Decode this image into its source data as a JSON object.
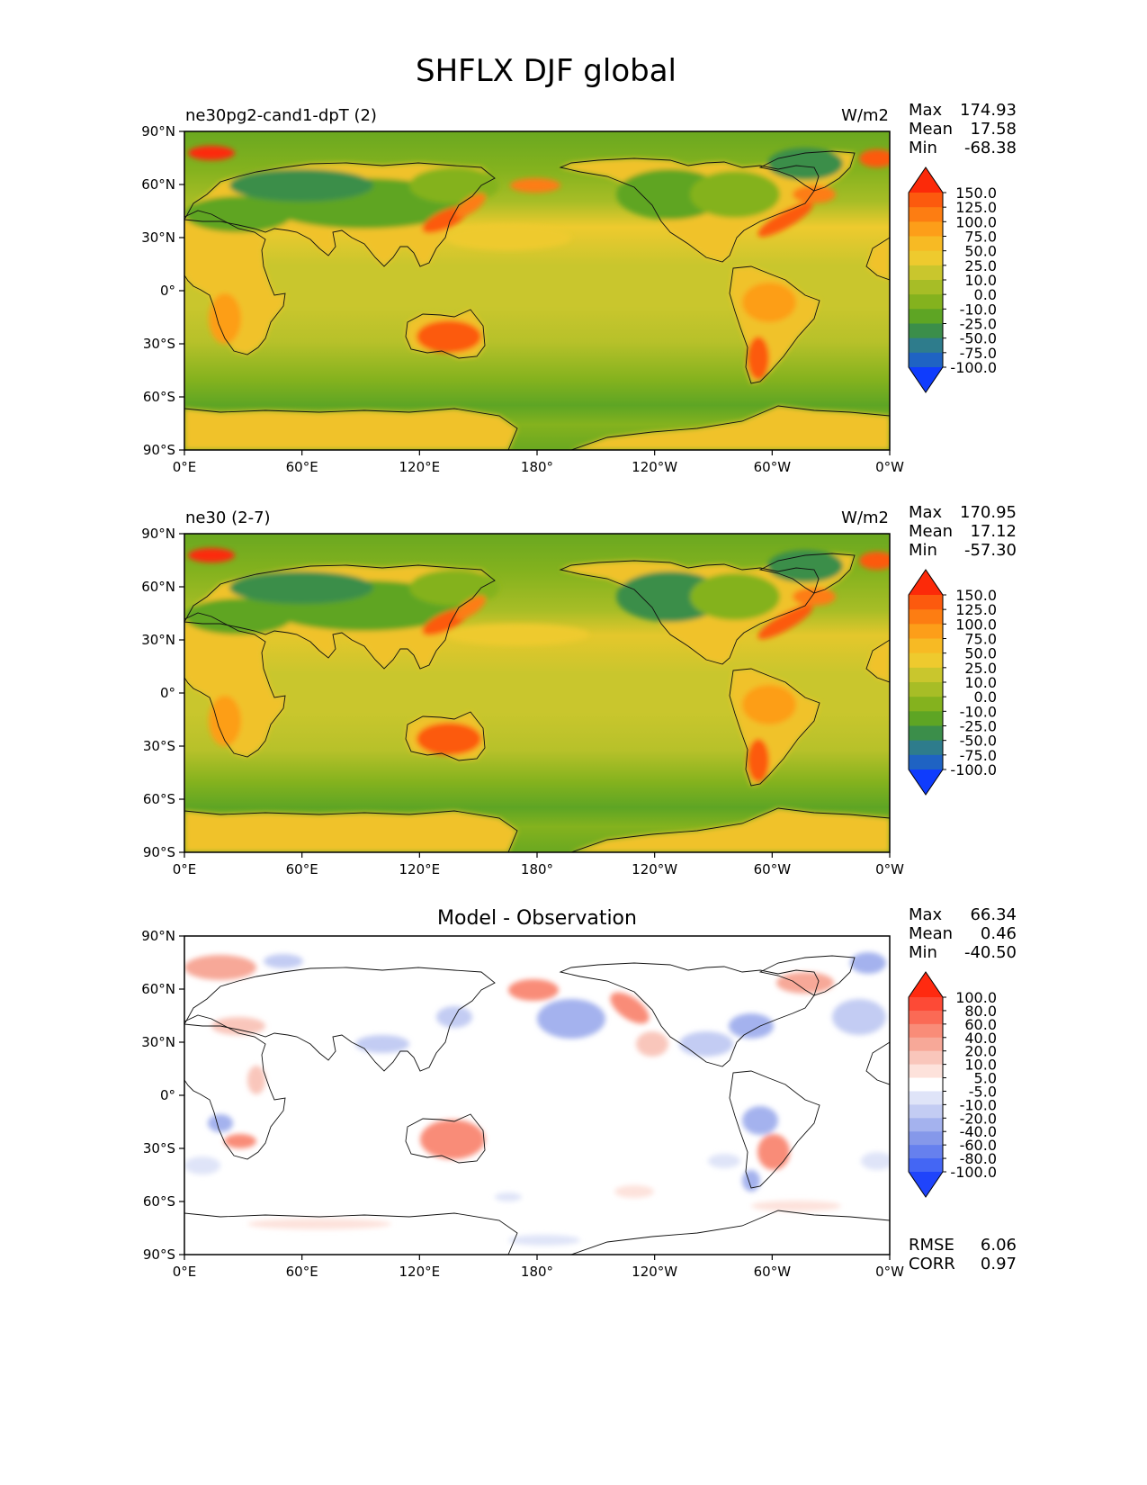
{
  "figure": {
    "title": "SHFLX DJF global"
  },
  "chart_data": [
    {
      "type": "heatmap",
      "panel": "model",
      "title": "ne30pg2-cand1-dpT (2)",
      "units": "W/m2",
      "stats": {
        "max": "174.93",
        "mean": "17.58",
        "min": "-68.38"
      },
      "stat_labels": {
        "max": "Max",
        "mean": "Mean",
        "min": "Min"
      },
      "x_ticks": [
        "0°E",
        "60°E",
        "120°E",
        "180°",
        "120°W",
        "60°W",
        "0°W"
      ],
      "y_ticks": [
        "90°N",
        "60°N",
        "30°N",
        "0°",
        "30°S",
        "60°S",
        "90°S"
      ],
      "xlim": [
        0,
        360
      ],
      "ylim": [
        -90,
        90
      ],
      "colorbar": {
        "labels": [
          "150.0",
          "125.0",
          "100.0",
          "75.0",
          "50.0",
          "25.0",
          "10.0",
          "0.0",
          "-10.0",
          "-25.0",
          "-50.0",
          "-75.0",
          "-100.0"
        ],
        "colors": [
          "#fc2a09",
          "#fc5a0e",
          "#fd7d12",
          "#fd9e19",
          "#f7ba24",
          "#eeca2e",
          "#c9c62d",
          "#a7bd26",
          "#84b21e",
          "#5ea524",
          "#3b8e4a",
          "#2e7c8c",
          "#1f63c3",
          "#0f3cfd"
        ]
      }
    },
    {
      "type": "heatmap",
      "panel": "reference",
      "title": "ne30 (2-7)",
      "units": "W/m2",
      "stats": {
        "max": "170.95",
        "mean": "17.12",
        "min": "-57.30"
      },
      "stat_labels": {
        "max": "Max",
        "mean": "Mean",
        "min": "Min"
      },
      "x_ticks": [
        "0°E",
        "60°E",
        "120°E",
        "180°",
        "120°W",
        "60°W",
        "0°W"
      ],
      "y_ticks": [
        "90°N",
        "60°N",
        "30°N",
        "0°",
        "30°S",
        "60°S",
        "90°S"
      ],
      "xlim": [
        0,
        360
      ],
      "ylim": [
        -90,
        90
      ],
      "colorbar": {
        "labels": [
          "150.0",
          "125.0",
          "100.0",
          "75.0",
          "50.0",
          "25.0",
          "10.0",
          "0.0",
          "-10.0",
          "-25.0",
          "-50.0",
          "-75.0",
          "-100.0"
        ],
        "colors": [
          "#fc2a09",
          "#fc5a0e",
          "#fd7d12",
          "#fd9e19",
          "#f7ba24",
          "#eeca2e",
          "#c9c62d",
          "#a7bd26",
          "#84b21e",
          "#5ea524",
          "#3b8e4a",
          "#2e7c8c",
          "#1f63c3",
          "#0f3cfd"
        ]
      }
    },
    {
      "type": "heatmap",
      "panel": "difference",
      "title": "Model - Observation",
      "units": "",
      "stats": {
        "max": "66.34",
        "mean": "0.46",
        "min": "-40.50"
      },
      "stat_labels": {
        "max": "Max",
        "mean": "Mean",
        "min": "Min"
      },
      "metrics": {
        "rmse_label": "RMSE",
        "rmse": "6.06",
        "corr_label": "CORR",
        "corr": "0.97"
      },
      "x_ticks": [
        "0°E",
        "60°E",
        "120°E",
        "180°",
        "120°W",
        "60°W",
        "0°W"
      ],
      "y_ticks": [
        "90°N",
        "60°N",
        "30°N",
        "0°",
        "30°S",
        "60°S",
        "90°S"
      ],
      "xlim": [
        0,
        360
      ],
      "ylim": [
        -90,
        90
      ],
      "colorbar": {
        "labels": [
          "100.0",
          "80.0",
          "60.0",
          "40.0",
          "20.0",
          "10.0",
          "5.0",
          "-5.0",
          "-10.0",
          "-20.0",
          "-40.0",
          "-60.0",
          "-80.0",
          "-100.0"
        ],
        "colors": [
          "#ff2a10",
          "#fd4a36",
          "#fb6a55",
          "#f98c78",
          "#f7a898",
          "#f9c6bb",
          "#fde2db",
          "#ffffff",
          "#dfe4f8",
          "#c3ccf3",
          "#a4b2ee",
          "#8598ea",
          "#6680ee",
          "#4466f4",
          "#1f44fb"
        ]
      }
    }
  ]
}
